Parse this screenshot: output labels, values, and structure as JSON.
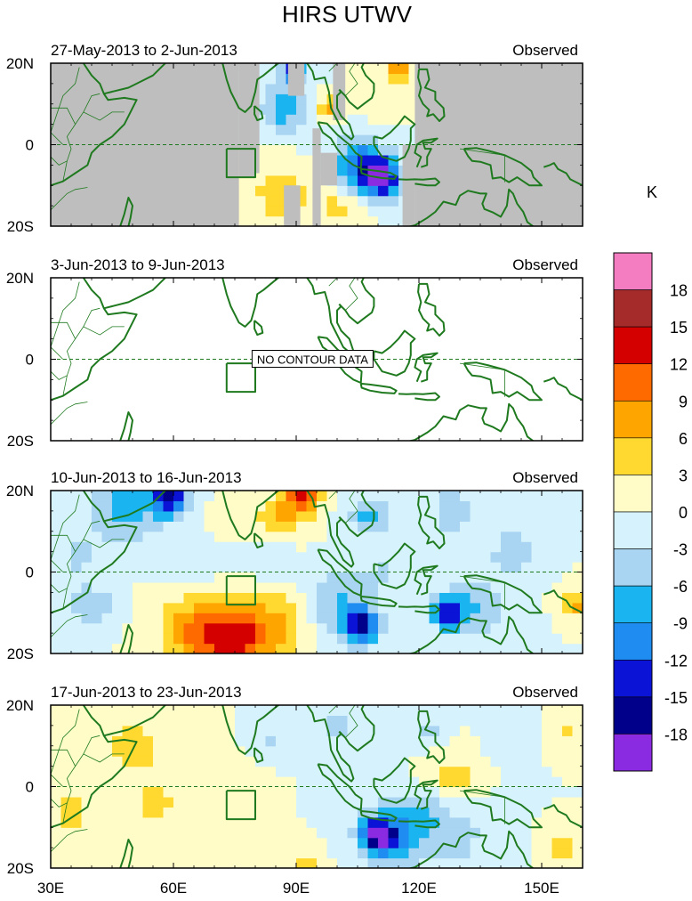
{
  "chart_data": {
    "type": "heatmap",
    "title": "HIRS UTWV",
    "colorbar": {
      "unit": "K",
      "labels": [
        "18",
        "15",
        "12",
        "9",
        "6",
        "3",
        "0",
        "-3",
        "-6",
        "-9",
        "-12",
        "-15",
        "-18"
      ],
      "colors": [
        "#f47dc2",
        "#a52a2a",
        "#d40000",
        "#ff6a00",
        "#ffa500",
        "#ffd92f",
        "#fffcc8",
        "#d6f2fc",
        "#a9d4f2",
        "#1ab4f0",
        "#1e8cf0",
        "#0b13d6",
        "#00008b",
        "#8a2be2"
      ]
    },
    "x_ticks": [
      "30E",
      "60E",
      "90E",
      "120E",
      "150E"
    ],
    "y_ticks": [
      "20N",
      "0",
      "20S"
    ],
    "xlim": [
      30,
      160
    ],
    "ylim": [
      -20,
      20
    ],
    "panels": [
      {
        "period": "27-May-2013 to 2-Jun-2013",
        "label": "Observed",
        "no_data_text": "",
        "missing_regions": [
          {
            "lon": [
              30,
              76
            ],
            "lat": [
              -20,
              20
            ]
          },
          {
            "lon": [
              76,
              80
            ],
            "lat": [
              -8,
              20
            ]
          },
          {
            "lon": [
              80,
              81
            ],
            "lat": [
              -7,
              20
            ]
          },
          {
            "lon": [
              88,
              92
            ],
            "lat": [
              12,
              20
            ]
          },
          {
            "lon": [
              87,
              91
            ],
            "lat": [
              -20,
              -10
            ]
          },
          {
            "lon": [
              94,
              96
            ],
            "lat": [
              -20,
              4
            ]
          },
          {
            "lon": [
              96,
              100
            ],
            "lat": [
              -10,
              -2
            ]
          },
          {
            "lon": [
              99,
              102
            ],
            "lat": [
              6,
              20
            ]
          },
          {
            "lon": [
              119,
              160
            ],
            "lat": [
              -20,
              20
            ]
          },
          {
            "lon": [
              116,
              119
            ],
            "lat": [
              -20,
              0
            ]
          }
        ],
        "anomalies": [
          {
            "lon": 111,
            "lat": -8,
            "value": -15,
            "spread": 5
          },
          {
            "lon": 106,
            "lat": -6,
            "value": -11,
            "spread": 6
          },
          {
            "lon": 87,
            "lat": 9,
            "value": -8,
            "spread": 6
          },
          {
            "lon": 89,
            "lat": 18,
            "value": -15,
            "spread": 2.5
          },
          {
            "lon": 98,
            "lat": 9,
            "value": 7,
            "spread": 3
          },
          {
            "lon": 115,
            "lat": 18,
            "value": 8,
            "spread": 3
          },
          {
            "lon": 86,
            "lat": -12,
            "value": 5,
            "spread": 7
          },
          {
            "lon": 100,
            "lat": -15,
            "value": 4,
            "spread": 6
          },
          {
            "lon": 110,
            "lat": 12,
            "value": 3,
            "spread": 5
          },
          {
            "lon": 104,
            "lat": 0,
            "value": -3,
            "spread": 6
          }
        ]
      },
      {
        "period": "3-Jun-2013 to 9-Jun-2013",
        "label": "Observed",
        "no_data_text": "NO CONTOUR DATA",
        "missing_regions": [],
        "anomalies": []
      },
      {
        "period": "10-Jun-2013 to 16-Jun-2013",
        "label": "Observed",
        "no_data_text": "",
        "missing_regions": [],
        "anomalies": [
          {
            "lon": 75,
            "lat": -16,
            "value": 13,
            "spread": 9
          },
          {
            "lon": 64,
            "lat": -14,
            "value": 7,
            "spread": 8
          },
          {
            "lon": 88,
            "lat": -12,
            "value": 5,
            "spread": 9
          },
          {
            "lon": 106,
            "lat": -13,
            "value": -15,
            "spread": 4
          },
          {
            "lon": 100,
            "lat": -9,
            "value": -7,
            "spread": 9
          },
          {
            "lon": 127,
            "lat": -10,
            "value": -14,
            "spread": 3.5
          },
          {
            "lon": 133,
            "lat": -9,
            "value": -6,
            "spread": 8
          },
          {
            "lon": 59,
            "lat": 19,
            "value": -14,
            "spread": 5
          },
          {
            "lon": 48,
            "lat": 16,
            "value": -7,
            "spread": 9
          },
          {
            "lon": 92,
            "lat": 19,
            "value": 13,
            "spread": 4
          },
          {
            "lon": 86,
            "lat": 14,
            "value": 6,
            "spread": 6
          },
          {
            "lon": 108,
            "lat": 14,
            "value": -7,
            "spread": 5
          },
          {
            "lon": 128,
            "lat": 15,
            "value": -6,
            "spread": 5
          },
          {
            "lon": 143,
            "lat": 5,
            "value": -6,
            "spread": 5
          },
          {
            "lon": 158,
            "lat": -8,
            "value": 8,
            "spread": 3
          },
          {
            "lon": 40,
            "lat": -8,
            "value": -6,
            "spread": 5
          },
          {
            "lon": 37,
            "lat": 4,
            "value": -4,
            "spread": 5
          },
          {
            "lon": 112,
            "lat": 1,
            "value": -3,
            "spread": 6
          },
          {
            "lon": 84,
            "lat": 2,
            "value": -3,
            "spread": 6
          },
          {
            "lon": 65,
            "lat": 4,
            "value": -3,
            "spread": 6
          },
          {
            "lon": 72,
            "lat": 12,
            "value": 3,
            "spread": 4
          }
        ]
      },
      {
        "period": "17-Jun-2013 to 23-Jun-2013",
        "label": "Observed",
        "no_data_text": "",
        "missing_regions": [],
        "anomalies": [
          {
            "lon": 110,
            "lat": -12,
            "value": -15,
            "spread": 4
          },
          {
            "lon": 114,
            "lat": -11,
            "value": -9,
            "spread": 8
          },
          {
            "lon": 129,
            "lat": -12,
            "value": -4,
            "spread": 9
          },
          {
            "lon": 100,
            "lat": 15,
            "value": -5,
            "spread": 5
          },
          {
            "lon": 113,
            "lat": 14,
            "value": -3,
            "spread": 5
          },
          {
            "lon": 122,
            "lat": 14,
            "value": -4,
            "spread": 4
          },
          {
            "lon": 142,
            "lat": 13,
            "value": -3,
            "spread": 5
          },
          {
            "lon": 84,
            "lat": 11,
            "value": -4,
            "spread": 3
          },
          {
            "lon": 50,
            "lat": 10,
            "value": 5,
            "spread": 7
          },
          {
            "lon": 35,
            "lat": -6,
            "value": 4,
            "spread": 6
          },
          {
            "lon": 56,
            "lat": -4,
            "value": 4,
            "spread": 6
          },
          {
            "lon": 75,
            "lat": -3,
            "value": 3,
            "spread": 5
          },
          {
            "lon": 128,
            "lat": 2,
            "value": 5,
            "spread": 6
          },
          {
            "lon": 156,
            "lat": 14,
            "value": 4,
            "spread": 4
          },
          {
            "lon": 155,
            "lat": -15,
            "value": 4,
            "spread": 4
          },
          {
            "lon": 92,
            "lat": -19,
            "value": 4,
            "spread": 4
          },
          {
            "lon": 123,
            "lat": -6,
            "value": -3,
            "spread": 5
          }
        ]
      }
    ]
  }
}
